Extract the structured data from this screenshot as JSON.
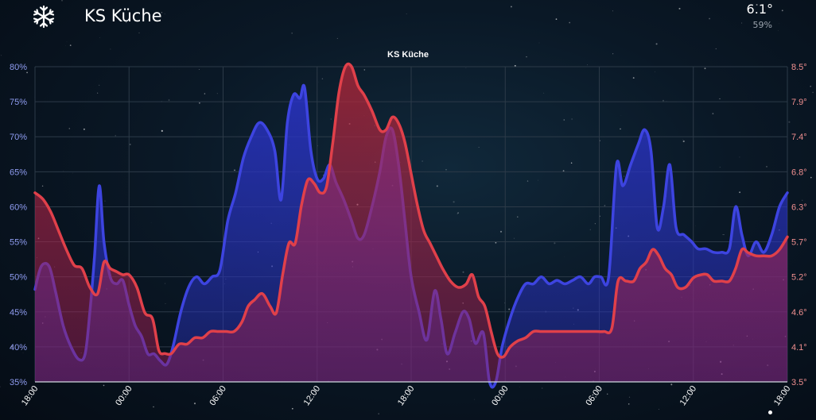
{
  "header": {
    "title": "KS Küche",
    "value": "6.1°",
    "sub_value": "59%",
    "icon": "snowflake-icon"
  },
  "colors": {
    "humidity": "#3d44e0",
    "temperature": "#e0404a",
    "grid": "#2c3a48",
    "background": "#07111c"
  },
  "chart_data": {
    "type": "area",
    "title": "KS Küche",
    "x_ticks": [
      "18:00",
      "00:00",
      "06:00",
      "12:00",
      "18:00",
      "00:00",
      "06:00",
      "12:00",
      "18:00"
    ],
    "x_range_hours": [
      0,
      48
    ],
    "y_left": {
      "ticks": [
        "35%",
        "40%",
        "45%",
        "50%",
        "55%",
        "60%",
        "65%",
        "70%",
        "75%",
        "80%"
      ],
      "range": [
        35,
        80
      ]
    },
    "y_right": {
      "ticks": [
        "3.5°",
        "4.1°",
        "4.6°",
        "5.2°",
        "5.7°",
        "6.3°",
        "6.8°",
        "7.4°",
        "7.9°",
        "8.5°"
      ],
      "range": [
        3.5,
        8.5
      ]
    },
    "grid": true,
    "series": [
      {
        "axis": "left",
        "color": "#3d44e0",
        "points": [
          [
            0,
            48.2
          ],
          [
            0.4,
            51.5
          ],
          [
            0.9,
            51.5
          ],
          [
            1.3,
            48
          ],
          [
            1.8,
            43
          ],
          [
            2.3,
            40
          ],
          [
            2.8,
            38.2
          ],
          [
            3.2,
            39
          ],
          [
            3.5,
            45
          ],
          [
            3.8,
            53
          ],
          [
            4.1,
            63
          ],
          [
            4.4,
            55
          ],
          [
            4.8,
            50
          ],
          [
            5.2,
            49
          ],
          [
            5.6,
            49.5
          ],
          [
            6,
            46
          ],
          [
            6.4,
            43
          ],
          [
            6.8,
            41.5
          ],
          [
            7.2,
            39
          ],
          [
            7.6,
            39
          ],
          [
            8,
            38
          ],
          [
            8.4,
            37.5
          ],
          [
            8.8,
            40
          ],
          [
            9.3,
            45
          ],
          [
            9.8,
            48.5
          ],
          [
            10.3,
            50
          ],
          [
            10.8,
            49
          ],
          [
            11.3,
            50
          ],
          [
            11.8,
            51
          ],
          [
            12.3,
            58
          ],
          [
            12.8,
            62
          ],
          [
            13.3,
            67
          ],
          [
            13.8,
            70
          ],
          [
            14.3,
            72
          ],
          [
            14.8,
            71
          ],
          [
            15.3,
            68
          ],
          [
            15.7,
            61
          ],
          [
            16.1,
            72
          ],
          [
            16.5,
            76
          ],
          [
            16.9,
            75.5
          ],
          [
            17.2,
            77
          ],
          [
            17.6,
            68
          ],
          [
            18,
            64
          ],
          [
            18.4,
            64
          ],
          [
            18.8,
            66
          ],
          [
            19.2,
            63.5
          ],
          [
            19.7,
            61
          ],
          [
            20.2,
            58
          ],
          [
            20.6,
            55.5
          ],
          [
            21,
            56
          ],
          [
            21.5,
            60
          ],
          [
            22,
            65
          ],
          [
            22.4,
            70
          ],
          [
            22.8,
            71
          ],
          [
            23.2,
            66
          ],
          [
            23.6,
            58
          ],
          [
            24,
            50
          ],
          [
            24.5,
            45
          ],
          [
            25,
            41
          ],
          [
            25.5,
            48
          ],
          [
            25.9,
            44
          ],
          [
            26.3,
            39
          ],
          [
            26.8,
            42
          ],
          [
            27.3,
            45
          ],
          [
            27.7,
            44
          ],
          [
            28.1,
            40.5
          ],
          [
            28.6,
            42
          ],
          [
            29,
            35
          ],
          [
            29.4,
            35
          ],
          [
            29.8,
            40
          ],
          [
            30.3,
            44
          ],
          [
            30.8,
            47
          ],
          [
            31.3,
            49
          ],
          [
            31.8,
            49
          ],
          [
            32.3,
            50
          ],
          [
            32.8,
            49
          ],
          [
            33.3,
            49.5
          ],
          [
            33.8,
            49
          ],
          [
            34.3,
            49.5
          ],
          [
            34.8,
            50
          ],
          [
            35.3,
            49
          ],
          [
            35.7,
            50
          ],
          [
            36.1,
            50
          ],
          [
            36.6,
            50
          ],
          [
            37.1,
            66
          ],
          [
            37.5,
            63
          ],
          [
            38,
            66
          ],
          [
            38.5,
            69
          ],
          [
            38.9,
            71
          ],
          [
            39.3,
            68
          ],
          [
            39.7,
            57
          ],
          [
            40.1,
            60
          ],
          [
            40.5,
            66
          ],
          [
            40.9,
            57
          ],
          [
            41.4,
            56
          ],
          [
            41.9,
            55
          ],
          [
            42.3,
            54
          ],
          [
            42.8,
            54
          ],
          [
            43.3,
            53.5
          ],
          [
            43.8,
            53.5
          ],
          [
            44.3,
            54
          ],
          [
            44.7,
            60
          ],
          [
            45.1,
            56
          ],
          [
            45.5,
            53
          ],
          [
            46,
            55
          ],
          [
            46.5,
            53.5
          ],
          [
            47,
            56
          ],
          [
            47.5,
            60
          ],
          [
            48,
            62
          ]
        ]
      },
      {
        "axis": "right",
        "color": "#e0404a",
        "points": [
          [
            0,
            6.5
          ],
          [
            0.5,
            6.4
          ],
          [
            1,
            6.2
          ],
          [
            1.5,
            5.9
          ],
          [
            2,
            5.6
          ],
          [
            2.5,
            5.35
          ],
          [
            3,
            5.3
          ],
          [
            3.5,
            5.0
          ],
          [
            4,
            4.9
          ],
          [
            4.4,
            5.4
          ],
          [
            4.8,
            5.3
          ],
          [
            5.2,
            5.25
          ],
          [
            5.6,
            5.2
          ],
          [
            6,
            5.2
          ],
          [
            6.5,
            5.0
          ],
          [
            7,
            4.6
          ],
          [
            7.5,
            4.5
          ],
          [
            7.9,
            4.0
          ],
          [
            8.3,
            3.95
          ],
          [
            8.7,
            3.95
          ],
          [
            9.2,
            4.1
          ],
          [
            9.7,
            4.1
          ],
          [
            10.2,
            4.2
          ],
          [
            10.7,
            4.2
          ],
          [
            11.2,
            4.3
          ],
          [
            11.7,
            4.3
          ],
          [
            12.2,
            4.3
          ],
          [
            12.7,
            4.3
          ],
          [
            13.2,
            4.45
          ],
          [
            13.6,
            4.7
          ],
          [
            14,
            4.8
          ],
          [
            14.5,
            4.9
          ],
          [
            15,
            4.7
          ],
          [
            15.4,
            4.6
          ],
          [
            15.8,
            5.2
          ],
          [
            16.2,
            5.7
          ],
          [
            16.6,
            5.7
          ],
          [
            17,
            6.3
          ],
          [
            17.4,
            6.7
          ],
          [
            17.8,
            6.65
          ],
          [
            18.2,
            6.5
          ],
          [
            18.6,
            6.6
          ],
          [
            19,
            7.3
          ],
          [
            19.4,
            8.1
          ],
          [
            19.8,
            8.5
          ],
          [
            20.2,
            8.5
          ],
          [
            20.6,
            8.2
          ],
          [
            21,
            8.05
          ],
          [
            21.5,
            7.8
          ],
          [
            22,
            7.5
          ],
          [
            22.4,
            7.5
          ],
          [
            22.8,
            7.7
          ],
          [
            23.2,
            7.6
          ],
          [
            23.6,
            7.3
          ],
          [
            24,
            6.8
          ],
          [
            24.4,
            6.3
          ],
          [
            24.8,
            5.9
          ],
          [
            25.2,
            5.7
          ],
          [
            25.6,
            5.5
          ],
          [
            26,
            5.3
          ],
          [
            26.5,
            5.1
          ],
          [
            27,
            5.0
          ],
          [
            27.5,
            5.05
          ],
          [
            27.9,
            5.2
          ],
          [
            28.3,
            4.85
          ],
          [
            28.7,
            4.7
          ],
          [
            29.1,
            4.3
          ],
          [
            29.5,
            3.95
          ],
          [
            29.9,
            3.9
          ],
          [
            30.3,
            4.05
          ],
          [
            30.8,
            4.15
          ],
          [
            31.3,
            4.2
          ],
          [
            31.8,
            4.3
          ],
          [
            32.3,
            4.3
          ],
          [
            32.8,
            4.3
          ],
          [
            33.3,
            4.3
          ],
          [
            33.8,
            4.3
          ],
          [
            34.3,
            4.3
          ],
          [
            34.8,
            4.3
          ],
          [
            35.3,
            4.3
          ],
          [
            35.8,
            4.3
          ],
          [
            36.3,
            4.3
          ],
          [
            36.8,
            4.35
          ],
          [
            37.2,
            5.1
          ],
          [
            37.7,
            5.1
          ],
          [
            38.2,
            5.1
          ],
          [
            38.6,
            5.3
          ],
          [
            39,
            5.4
          ],
          [
            39.4,
            5.6
          ],
          [
            39.8,
            5.5
          ],
          [
            40.2,
            5.3
          ],
          [
            40.6,
            5.2
          ],
          [
            41,
            5.0
          ],
          [
            41.5,
            5.0
          ],
          [
            42,
            5.15
          ],
          [
            42.5,
            5.2
          ],
          [
            42.9,
            5.2
          ],
          [
            43.3,
            5.1
          ],
          [
            43.8,
            5.1
          ],
          [
            44.3,
            5.1
          ],
          [
            44.7,
            5.3
          ],
          [
            45.1,
            5.6
          ],
          [
            45.5,
            5.55
          ],
          [
            46,
            5.5
          ],
          [
            46.5,
            5.5
          ],
          [
            47,
            5.5
          ],
          [
            47.5,
            5.6
          ],
          [
            48,
            5.8
          ]
        ]
      }
    ]
  }
}
